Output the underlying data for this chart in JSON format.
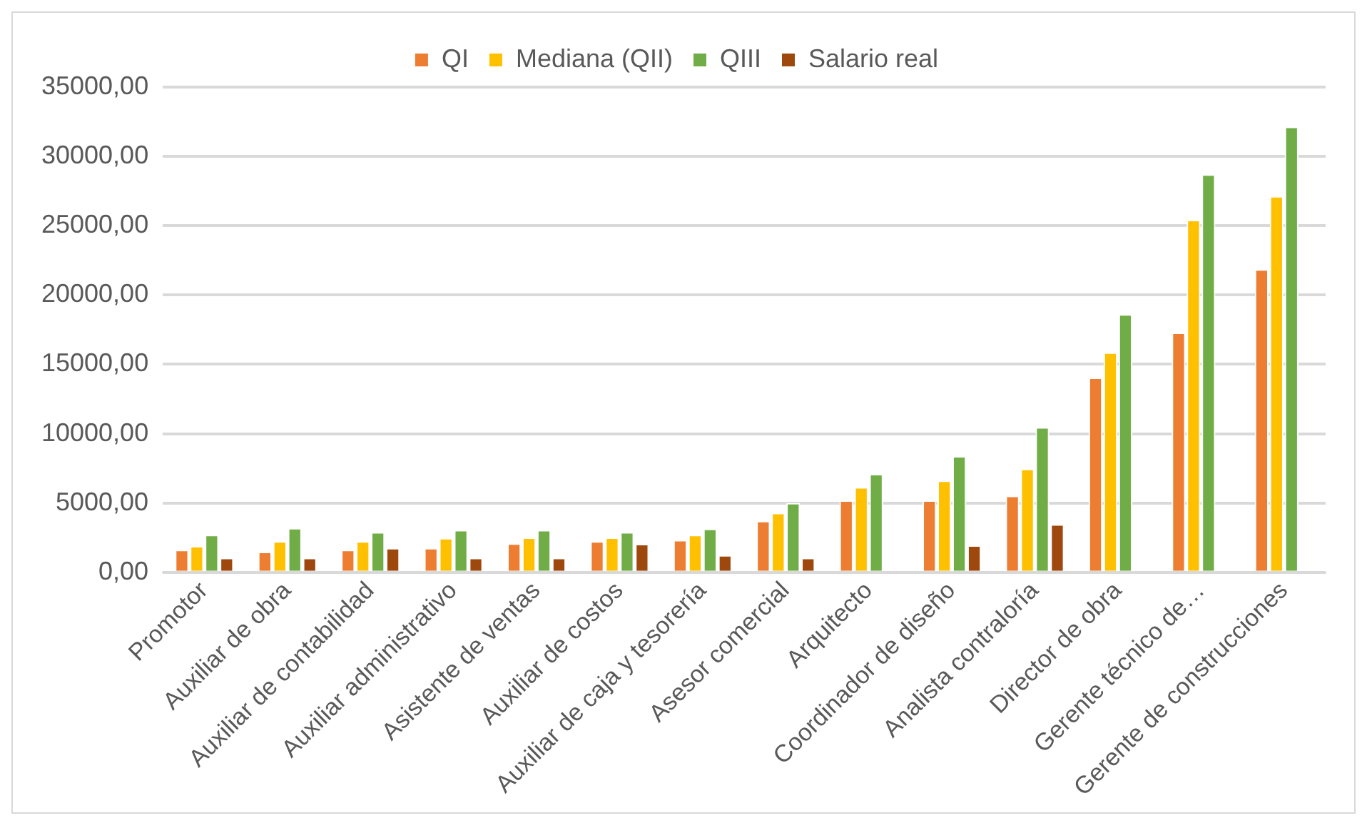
{
  "chart_data": {
    "type": "bar",
    "categories": [
      "Promotor",
      "Auxiliar de obra",
      "Auxiliar de contabilidad",
      "Auxiliar administrativo",
      "Asistente de ventas",
      "Auxiliar de costos",
      "Auxiliar de caja y tesorería",
      "Asesor comercial",
      "Arquitecto",
      "Coordinador de diseño",
      "Analista contraloría",
      "Director de obra",
      "Gerente técnico de…",
      "Gerente de construcciones"
    ],
    "series": [
      {
        "name": "QI",
        "color": "#ed7d31",
        "values": [
          1620,
          1480,
          1620,
          1760,
          2090,
          2240,
          2330,
          3710,
          5190,
          5190,
          5520,
          14050,
          17290,
          21860
        ]
      },
      {
        "name": "Mediana (QII)",
        "color": "#ffc000",
        "values": [
          1900,
          2240,
          2240,
          2480,
          2520,
          2520,
          2710,
          4290,
          6140,
          6620,
          7470,
          15860,
          25430,
          27140
        ]
      },
      {
        "name": "QIII",
        "color": "#70ad47",
        "values": [
          2710,
          3190,
          2900,
          3050,
          3050,
          2900,
          3140,
          5000,
          7090,
          8380,
          10470,
          18620,
          28710,
          32140
        ]
      },
      {
        "name": "Salario real",
        "color": "#9e480e",
        "values": [
          1050,
          1050,
          1760,
          1050,
          1050,
          2050,
          1240,
          1050,
          null,
          1950,
          3470,
          null,
          null,
          null
        ]
      }
    ],
    "ylim": [
      0,
      35000
    ],
    "yticks": [
      {
        "value": 0,
        "label": "0,00"
      },
      {
        "value": 5000,
        "label": "5000,00"
      },
      {
        "value": 10000,
        "label": "10000,00"
      },
      {
        "value": 15000,
        "label": "15000,00"
      },
      {
        "value": 20000,
        "label": "20000,00"
      },
      {
        "value": 25000,
        "label": "25000,00"
      },
      {
        "value": 30000,
        "label": "30000,00"
      },
      {
        "value": 35000,
        "label": "35000,00"
      }
    ],
    "grid": "y",
    "legend": "top"
  }
}
